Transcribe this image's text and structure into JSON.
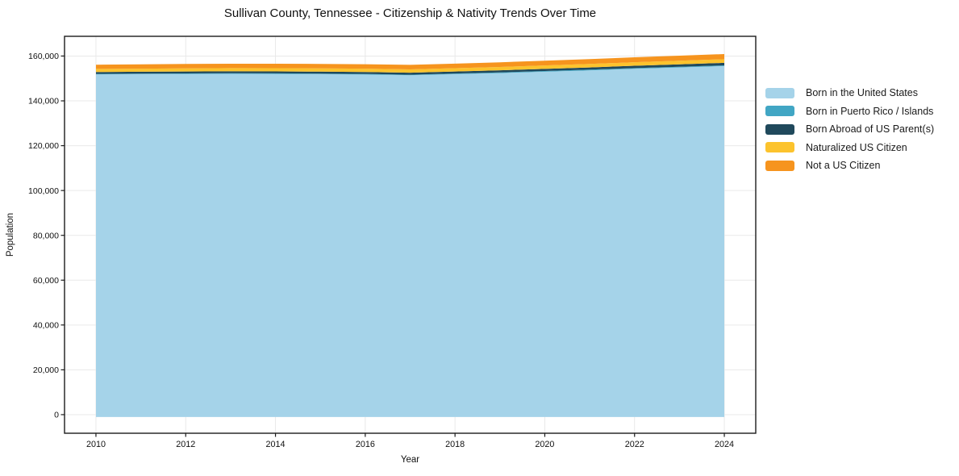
{
  "title": "Sullivan County, Tennessee - Citizenship & Nativity Trends Over Time",
  "chart_data": {
    "type": "area",
    "stacked": true,
    "title": "Sullivan County, Tennessee - Citizenship & Nativity Trends Over Time",
    "xlabel": "Year",
    "ylabel": "Population",
    "x": [
      2010,
      2011,
      2012,
      2013,
      2014,
      2015,
      2016,
      2017,
      2018,
      2019,
      2020,
      2021,
      2022,
      2023,
      2024
    ],
    "series": [
      {
        "name": "Born in the United States",
        "color": "#a5d3e9",
        "values": [
          151800,
          151900,
          152000,
          152050,
          152000,
          151900,
          151750,
          151400,
          151900,
          152400,
          153000,
          153600,
          154300,
          154900,
          155500
        ]
      },
      {
        "name": "Born in Puerto Rico / Islands",
        "color": "#41a6c4",
        "values": [
          240,
          250,
          250,
          260,
          260,
          270,
          270,
          280,
          290,
          300,
          310,
          320,
          330,
          340,
          350
        ]
      },
      {
        "name": "Born Abroad of US Parent(s)",
        "color": "#20495c",
        "values": [
          820,
          830,
          850,
          860,
          870,
          880,
          880,
          890,
          900,
          930,
          960,
          1000,
          1040,
          1080,
          1120
        ]
      },
      {
        "name": "Naturalized US Citizen",
        "color": "#fcc32d",
        "values": [
          1380,
          1400,
          1420,
          1430,
          1440,
          1450,
          1460,
          1470,
          1480,
          1500,
          1520,
          1540,
          1560,
          1580,
          1600
        ]
      },
      {
        "name": "Not a US Citizen",
        "color": "#f6941e",
        "values": [
          1900,
          1930,
          1950,
          1960,
          1980,
          1990,
          2000,
          2010,
          2040,
          2080,
          2120,
          2160,
          2210,
          2260,
          2310
        ]
      }
    ],
    "xticks": [
      2010,
      2012,
      2014,
      2016,
      2018,
      2020,
      2022,
      2024
    ],
    "yticks": [
      0,
      20000,
      40000,
      60000,
      80000,
      100000,
      120000,
      140000,
      160000
    ],
    "ytick_labels": [
      "0",
      "20,000",
      "40,000",
      "60,000",
      "80,000",
      "100,000",
      "120,000",
      "140,000",
      "160,000"
    ],
    "xlim": [
      2009.3,
      2024.7
    ],
    "ylim": [
      -8300,
      168800
    ],
    "grid": true,
    "grid_color": "#e9e9e9",
    "axis_color": "#1c1c1c",
    "legend_position": "right"
  }
}
